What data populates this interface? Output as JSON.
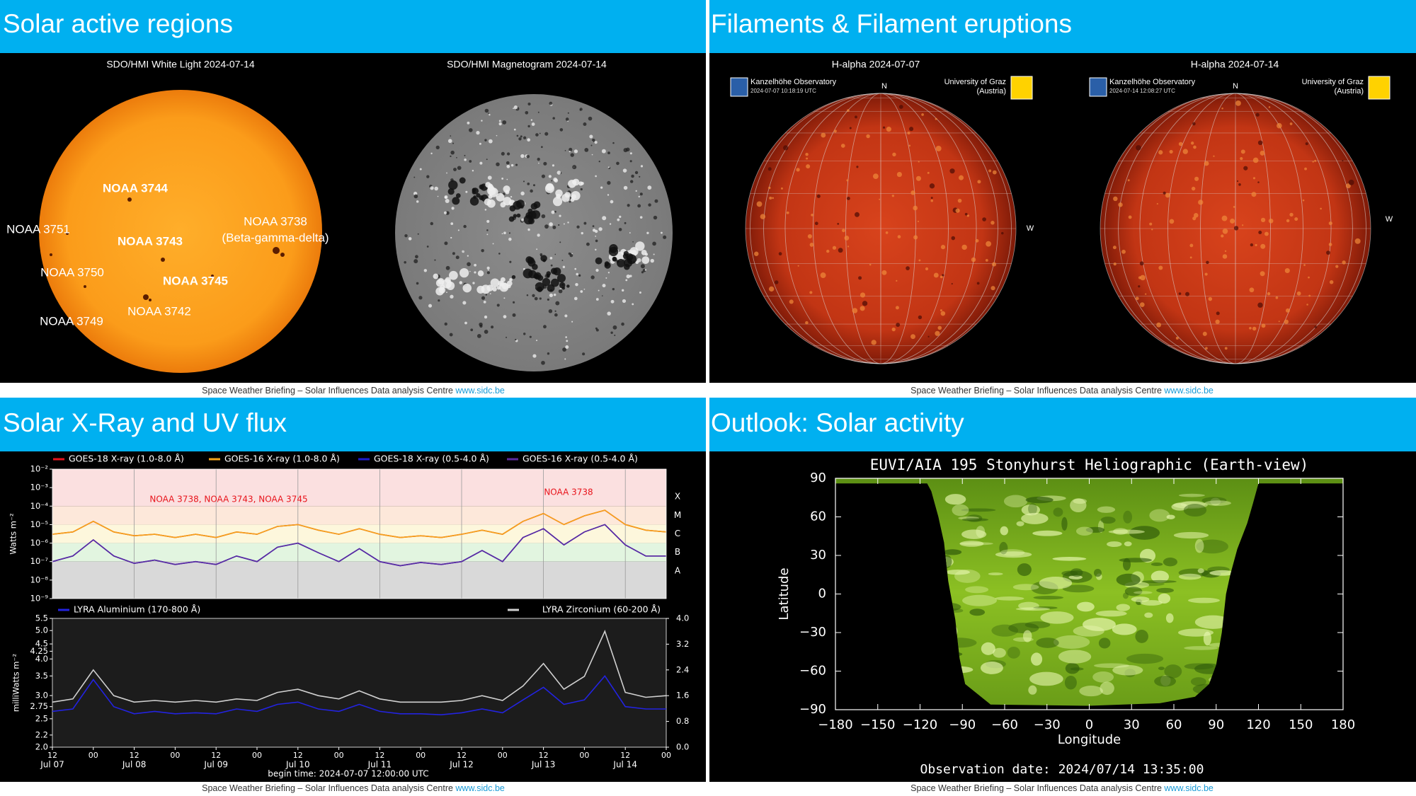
{
  "footer": {
    "text": "Space Weather Briefing – Solar Influences Data analysis Centre ",
    "link": "www.sidc.be"
  },
  "active_regions": {
    "title": "Solar active regions",
    "captions": [
      "SDO/HMI White Light 2024-07-14",
      "SDO/HMI Magnetogram 2024-07-14"
    ],
    "labels": [
      "NOAA 3744",
      "NOAA 3751",
      "NOAA 3738",
      "(Beta-gamma-delta)",
      "NOAA 3743",
      "NOAA 3750",
      "NOAA 3745",
      "NOAA 3742",
      "NOAA 3749"
    ]
  },
  "filaments": {
    "title": "Filaments & Filament eruptions",
    "captions": [
      "H-alpha 2024-07-07",
      "H-alpha 2024-07-14"
    ],
    "observatory": "Kanzelhöhe Observatory",
    "timestamps": [
      "2024-07-07 10:18:19 UTC",
      "2024-07-14 12:08:27 UTC"
    ],
    "university": "University of Graz",
    "country": "(Austria)",
    "north": "N",
    "west": "W"
  },
  "xray": {
    "title": "Solar X-Ray and UV flux",
    "x": [
      0,
      6,
      12,
      18,
      24,
      30,
      36,
      42,
      48,
      54,
      60,
      66,
      72,
      78,
      84,
      90,
      96,
      102,
      108,
      114,
      120,
      126,
      132,
      138,
      144,
      150,
      156,
      162,
      168,
      174,
      180
    ],
    "xlim": [
      0,
      180
    ],
    "xticks": [
      {
        "value": 0,
        "label": "12"
      },
      {
        "value": 12,
        "label": "00"
      },
      {
        "value": 24,
        "label": "12"
      },
      {
        "value": 36,
        "label": "00"
      },
      {
        "value": 48,
        "label": "12"
      },
      {
        "value": 60,
        "label": "00"
      },
      {
        "value": 72,
        "label": "12"
      },
      {
        "value": 84,
        "label": "00"
      },
      {
        "value": 96,
        "label": "12"
      },
      {
        "value": 108,
        "label": "00"
      },
      {
        "value": 120,
        "label": "12"
      },
      {
        "value": 132,
        "label": "00"
      },
      {
        "value": 144,
        "label": "12"
      },
      {
        "value": 156,
        "label": "00"
      },
      {
        "value": 168,
        "label": "12"
      },
      {
        "value": 180,
        "label": "00"
      }
    ],
    "date_labels": [
      {
        "value": 0,
        "label": "Jul 07"
      },
      {
        "value": 24,
        "label": "Jul 08"
      },
      {
        "value": 48,
        "label": "Jul 09"
      },
      {
        "value": 72,
        "label": "Jul 10"
      },
      {
        "value": 96,
        "label": "Jul 11"
      },
      {
        "value": 120,
        "label": "Jul 12"
      },
      {
        "value": 144,
        "label": "Jul 13"
      },
      {
        "value": 168,
        "label": "Jul 14"
      }
    ],
    "begin_time": "begin time: 2024-07-07 12:00:00 UTC",
    "goes": {
      "type": "line",
      "log_scale": true,
      "grid": true,
      "ylabel": "Watts m⁻²",
      "ylim": [
        1e-09,
        0.01
      ],
      "yticks": [
        {
          "value": 0.01,
          "label": "10⁻²"
        },
        {
          "value": 0.001,
          "label": "10⁻³"
        },
        {
          "value": 0.0001,
          "label": "10⁻⁴"
        },
        {
          "value": 1e-05,
          "label": "10⁻⁵"
        },
        {
          "value": 1e-06,
          "label": "10⁻⁶"
        },
        {
          "value": 1e-07,
          "label": "10⁻⁷"
        },
        {
          "value": 1e-08,
          "label": "10⁻⁸"
        },
        {
          "value": 1e-09,
          "label": "10⁻⁹"
        }
      ],
      "flare_classes": [
        {
          "value": 0.0001,
          "label": "X",
          "color": "#fbe0e0"
        },
        {
          "value": 1e-05,
          "label": "M",
          "color": "#fde8da"
        },
        {
          "value": 1e-06,
          "label": "C",
          "color": "#fdf7dc"
        },
        {
          "value": 1e-07,
          "label": "B",
          "color": "#e2f5e0"
        },
        {
          "value": 1e-08,
          "label": "A",
          "color": "#d9d9d9"
        }
      ],
      "annotations": [
        "NOAA 3738, NOAA 3743, NOAA 3745",
        "NOAA 3738"
      ],
      "series": [
        {
          "name": "GOES-18 X-ray (1.0-8.0 Å)",
          "color": "#e8141c",
          "values": [
            3e-06,
            4e-06,
            1.5e-05,
            4e-06,
            2.5e-06,
            3e-06,
            2e-06,
            3e-06,
            2e-06,
            4e-06,
            3e-06,
            8e-06,
            1e-05,
            5e-06,
            3e-06,
            6e-06,
            3e-06,
            2e-06,
            2.5e-06,
            2e-06,
            3e-06,
            5e-06,
            3e-06,
            1.5e-05,
            4e-05,
            1e-05,
            3e-05,
            6e-05,
            1e-05,
            5e-06,
            4e-06
          ]
        },
        {
          "name": "GOES-16 X-ray (1.0-8.0 Å)",
          "color": "#f5a31a",
          "values": [
            3e-06,
            4e-06,
            1.5e-05,
            4e-06,
            2.5e-06,
            3e-06,
            2e-06,
            3e-06,
            2e-06,
            4e-06,
            3e-06,
            8e-06,
            1e-05,
            5e-06,
            3e-06,
            6e-06,
            3e-06,
            2e-06,
            2.5e-06,
            2e-06,
            3e-06,
            5e-06,
            3e-06,
            1.5e-05,
            4e-05,
            1e-05,
            3e-05,
            6e-05,
            1e-05,
            5e-06,
            4e-06
          ]
        },
        {
          "name": "GOES-18 X-ray (0.5-4.0 Å)",
          "color": "#1c1ccf",
          "values": [
            1e-07,
            2e-07,
            1.5e-06,
            2e-07,
            8e-08,
            1.2e-07,
            7e-08,
            1e-07,
            7e-08,
            2e-07,
            1e-07,
            6e-07,
            1e-06,
            3e-07,
            1e-07,
            5e-07,
            1e-07,
            6e-08,
            9e-08,
            7e-08,
            1e-07,
            4e-07,
            1e-07,
            2e-06,
            6e-06,
            8e-07,
            4e-06,
            1e-05,
            8e-07,
            2e-07,
            2e-07
          ]
        },
        {
          "name": "GOES-16 X-ray (0.5-4.0 Å)",
          "color": "#5b2aa0",
          "values": [
            1e-07,
            2e-07,
            1.5e-06,
            2e-07,
            8e-08,
            1.2e-07,
            7e-08,
            1e-07,
            7e-08,
            2e-07,
            1e-07,
            6e-07,
            1e-06,
            3e-07,
            1e-07,
            5e-07,
            1e-07,
            6e-08,
            9e-08,
            7e-08,
            1e-07,
            4e-07,
            1e-07,
            2e-06,
            6e-06,
            8e-07,
            4e-06,
            1e-05,
            8e-07,
            2e-07,
            2e-07
          ]
        }
      ]
    },
    "lyra": {
      "type": "line",
      "log_scale": true,
      "ylabel": "milliWatts m⁻²",
      "ylim": [
        2.0,
        5.5
      ],
      "yticks": [
        {
          "value": 2,
          "label": "2.0"
        },
        2.2,
        2.5,
        2.75,
        {
          "value": 3,
          "label": "3.0"
        },
        3.5,
        {
          "value": 4,
          "label": "4.0"
        },
        4.25,
        4.5,
        {
          "value": 5,
          "label": "5.0"
        },
        5.5
      ],
      "y2lim": [
        0,
        4
      ],
      "y2ticks": [
        {
          "value": 0,
          "label": "0.0"
        },
        0.8,
        1.6,
        2.4,
        3.2,
        {
          "value": 4,
          "label": "4.0"
        }
      ],
      "series": [
        {
          "name": "LYRA Aluminium (170-800 Å)",
          "color": "#2323e0",
          "values": [
            2.65,
            2.7,
            3.4,
            2.75,
            2.6,
            2.65,
            2.6,
            2.62,
            2.6,
            2.7,
            2.65,
            2.8,
            2.85,
            2.7,
            2.65,
            2.8,
            2.65,
            2.6,
            2.6,
            2.58,
            2.62,
            2.7,
            2.62,
            2.9,
            3.2,
            2.8,
            2.9,
            3.5,
            2.75,
            2.7,
            2.7
          ]
        },
        {
          "name": "LYRA Zirconium (60-200 Å)",
          "color": "#d0d0d0",
          "axis": "y2",
          "values": [
            1.4,
            1.5,
            2.4,
            1.6,
            1.4,
            1.45,
            1.4,
            1.45,
            1.4,
            1.5,
            1.45,
            1.7,
            1.8,
            1.6,
            1.5,
            1.75,
            1.5,
            1.4,
            1.4,
            1.4,
            1.45,
            1.6,
            1.45,
            1.9,
            2.6,
            1.8,
            2.2,
            3.6,
            1.7,
            1.55,
            1.6
          ]
        }
      ]
    }
  },
  "outlook": {
    "title": "Outlook: Solar activity",
    "map": {
      "title": "EUVI/AIA 195 Stonyhurst Heliographic (Earth-view)",
      "xlabel": "Longitude",
      "ylabel": "Latitude",
      "xlim": [
        -180,
        180
      ],
      "xticks": [
        {
          "value": -180,
          "label": "−180"
        },
        {
          "value": -150,
          "label": "−150"
        },
        {
          "value": -120,
          "label": "−120"
        },
        {
          "value": -90,
          "label": "−90"
        },
        {
          "value": -60,
          "label": "−60"
        },
        {
          "value": -30,
          "label": "−30"
        },
        0,
        30,
        60,
        90,
        120,
        150,
        180
      ],
      "ylim": [
        -90,
        90
      ],
      "yticks": [
        {
          "value": -90,
          "label": "−90"
        },
        {
          "value": -60,
          "label": "−60"
        },
        {
          "value": -30,
          "label": "−30"
        },
        0,
        30,
        60,
        90
      ],
      "observation": "Observation date: 2024/07/14 13:35:00"
    }
  }
}
